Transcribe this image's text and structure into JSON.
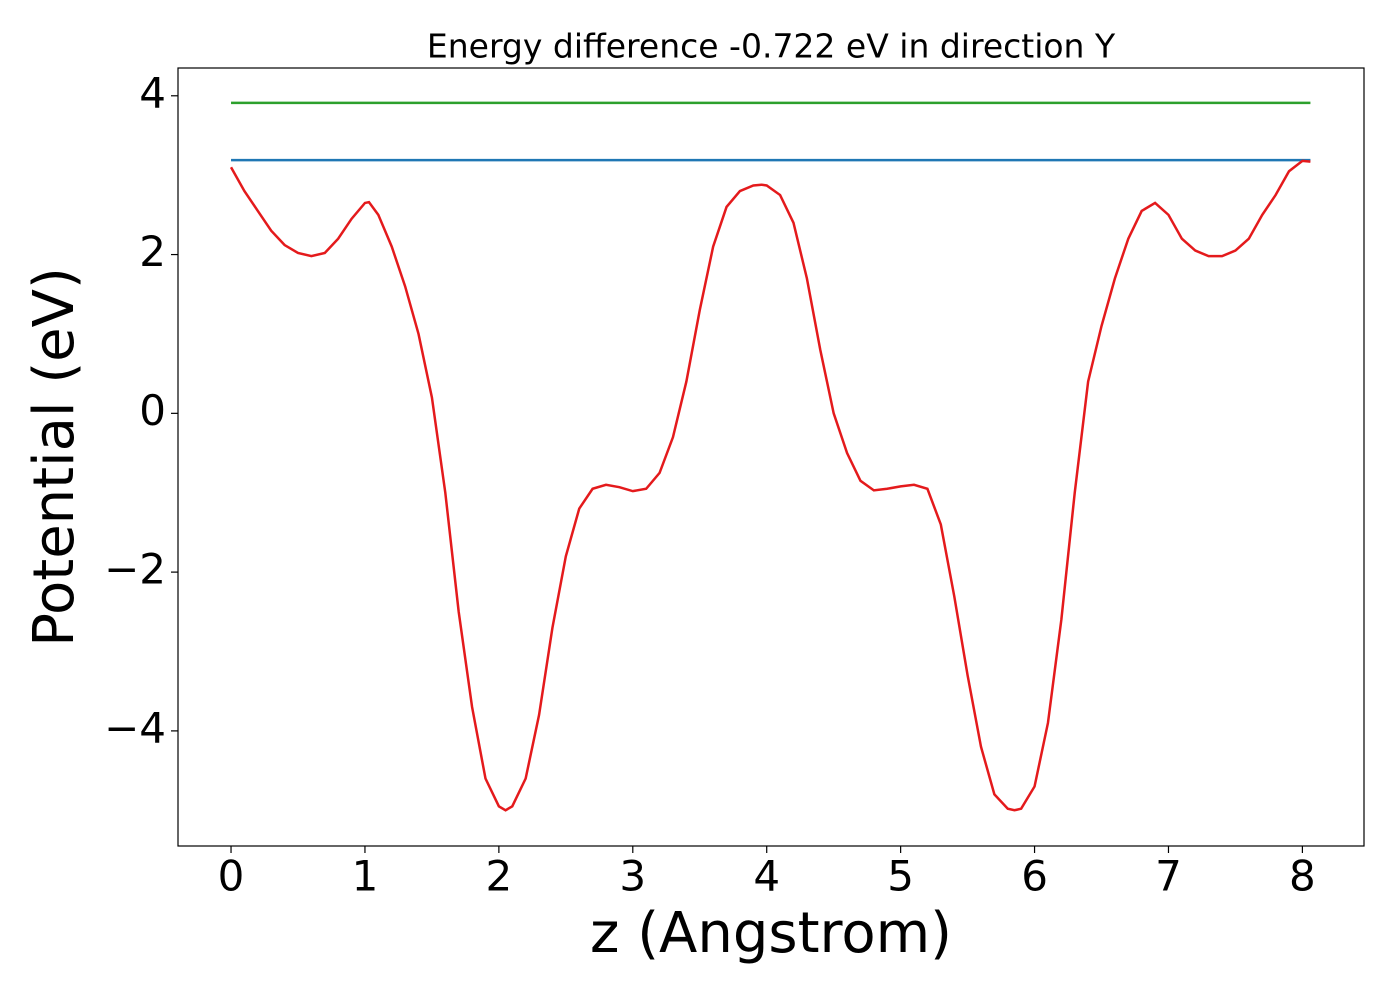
{
  "chart_data": {
    "type": "line",
    "title": "Energy difference -0.722 eV in direction Y",
    "xlabel": "z (Angstrom)",
    "ylabel": "Potential (eV)",
    "xlim": [
      -0.396,
      8.46
    ],
    "ylim": [
      -5.45,
      4.35
    ],
    "xticks": [
      0,
      1,
      2,
      3,
      4,
      5,
      6,
      7,
      8
    ],
    "yticks": [
      {
        "value": -4,
        "label": "−4"
      },
      {
        "value": -2,
        "label": "−2"
      },
      0,
      2,
      4
    ],
    "series": [
      {
        "color": "#2ca02c",
        "x": [
          0,
          8.06
        ],
        "values": [
          3.91,
          3.91
        ]
      },
      {
        "color": "#1f77b4",
        "x": [
          0,
          8.06
        ],
        "values": [
          3.19,
          3.19
        ]
      },
      {
        "color": "#e41a1c",
        "x": [
          0,
          0.1,
          0.2,
          0.3,
          0.4,
          0.5,
          0.6,
          0.7,
          0.8,
          0.9,
          1.0,
          1.03,
          1.1,
          1.2,
          1.3,
          1.4,
          1.5,
          1.6,
          1.7,
          1.8,
          1.9,
          2.0,
          2.05,
          2.1,
          2.2,
          2.3,
          2.4,
          2.5,
          2.6,
          2.7,
          2.8,
          2.9,
          3.0,
          3.1,
          3.2,
          3.3,
          3.4,
          3.5,
          3.6,
          3.7,
          3.8,
          3.9,
          3.96,
          4.0,
          4.1,
          4.2,
          4.3,
          4.4,
          4.5,
          4.6,
          4.7,
          4.8,
          4.9,
          5.0,
          5.1,
          5.2,
          5.3,
          5.4,
          5.5,
          5.6,
          5.7,
          5.8,
          5.85,
          5.9,
          6.0,
          6.1,
          6.2,
          6.3,
          6.4,
          6.5,
          6.6,
          6.7,
          6.8,
          6.9,
          7.0,
          7.1,
          7.2,
          7.3,
          7.4,
          7.5,
          7.6,
          7.7,
          7.8,
          7.9,
          8.0,
          8.06
        ],
        "values": [
          3.1,
          2.8,
          2.55,
          2.3,
          2.12,
          2.02,
          1.98,
          2.02,
          2.2,
          2.45,
          2.65,
          2.66,
          2.5,
          2.1,
          1.6,
          1.0,
          0.2,
          -1.0,
          -2.5,
          -3.7,
          -4.6,
          -4.95,
          -5.0,
          -4.95,
          -4.6,
          -3.8,
          -2.7,
          -1.8,
          -1.2,
          -0.95,
          -0.9,
          -0.93,
          -0.98,
          -0.95,
          -0.75,
          -0.3,
          0.4,
          1.3,
          2.1,
          2.6,
          2.8,
          2.87,
          2.88,
          2.87,
          2.75,
          2.4,
          1.7,
          0.8,
          0.0,
          -0.5,
          -0.85,
          -0.97,
          -0.95,
          -0.92,
          -0.9,
          -0.95,
          -1.4,
          -2.3,
          -3.3,
          -4.2,
          -4.8,
          -4.98,
          -5.0,
          -4.98,
          -4.7,
          -3.9,
          -2.6,
          -1.0,
          0.4,
          1.1,
          1.7,
          2.2,
          2.55,
          2.65,
          2.5,
          2.2,
          2.05,
          1.98,
          1.98,
          2.05,
          2.2,
          2.5,
          2.75,
          3.05,
          3.18,
          3.17
        ]
      }
    ]
  }
}
